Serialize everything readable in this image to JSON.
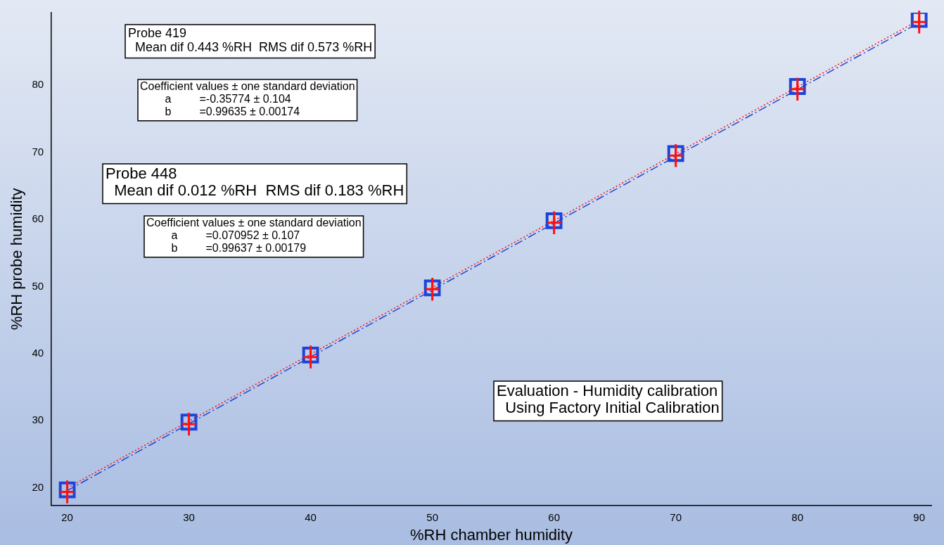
{
  "chart_data": {
    "type": "scatter",
    "xlabel": "%RH chamber humidity",
    "ylabel": "%RH probe humidity",
    "xlim": [
      18.7,
      91
    ],
    "xticks": [
      20,
      30,
      40,
      50,
      60,
      70,
      80,
      90
    ],
    "ylim": [
      17.4,
      90.8
    ],
    "yticks": [
      20,
      30,
      40,
      50,
      60,
      70,
      80
    ],
    "grid": false,
    "legend": false,
    "series": [
      {
        "type": "line",
        "color": "#1d44d6",
        "x": [
          20,
          90
        ],
        "values": [
          19.6,
          89.3
        ],
        "line_style": "dashdot",
        "marker": "none"
      },
      {
        "type": "line",
        "color": "#ff1010",
        "x": [
          20,
          90
        ],
        "values": [
          20.0,
          89.7
        ],
        "line_style": "dotted",
        "marker": "none"
      },
      {
        "type": "scatter",
        "color": "#1d44d6",
        "marker": "square",
        "x": [
          20,
          30,
          40,
          50,
          60,
          70,
          80,
          90
        ],
        "values": [
          19.7,
          29.8,
          39.8,
          49.8,
          59.8,
          69.8,
          79.8,
          89.8
        ]
      },
      {
        "type": "scatter",
        "color": "#ff1010",
        "marker": "cross",
        "x": [
          20,
          30,
          40,
          50,
          60,
          70,
          80,
          90
        ],
        "values": [
          19.4,
          29.5,
          39.5,
          49.6,
          59.5,
          69.5,
          79.4,
          89.4
        ],
        "errors": [
          1.7,
          1.7,
          1.7,
          1.7,
          1.7,
          1.7,
          1.7,
          1.7
        ]
      }
    ],
    "annotations": [
      "Probe 419\n  Mean dif 0.443 %RH  RMS dif 0.573 %RH",
      "Coefficient values ± one standard deviation\n        a         =-0.35774 ± 0.104\n        b         =0.99635 ± 0.00174",
      "Probe 448\n  Mean dif 0.012 %RH  RMS dif 0.183 %RH",
      "Coefficient values ± one standard deviation\n        a         =0.070952 ± 0.107\n        b         =0.99637 ± 0.00179",
      "Evaluation - Humidity calibration\n  Using Factory Initial Calibration"
    ]
  }
}
